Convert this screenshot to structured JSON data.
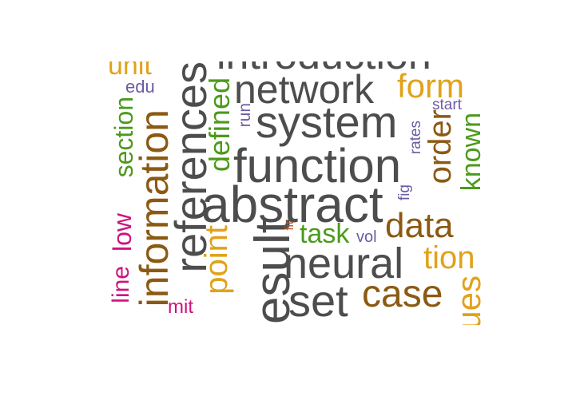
{
  "palette": {
    "dark_gray": "#4d4d4d",
    "brown": "#8b5a12",
    "orange": "#e1a21a",
    "green": "#4c9a1c",
    "purple": "#6d5ba3",
    "magenta": "#d0117c",
    "rust": "#c4501a"
  },
  "words": {
    "introduction": "introduction",
    "unit": "unit",
    "edu": "edu",
    "network": "network",
    "form": "form",
    "start": "start",
    "system": "system",
    "run": "run",
    "rates": "rates",
    "order": "order",
    "known": "known",
    "references": "references",
    "defined": "defined",
    "section": "section",
    "function": "function",
    "fig": "fig",
    "abstract": "abstract",
    "information": "information",
    "low": "low",
    "point": "point",
    "result": "result",
    "fit": "fit",
    "task": "task",
    "vol": "vol",
    "data": "data",
    "neural": "neural",
    "tion": "tion",
    "line": "line",
    "set": "set",
    "case": "case",
    "values": "values",
    "mit": "mit"
  }
}
